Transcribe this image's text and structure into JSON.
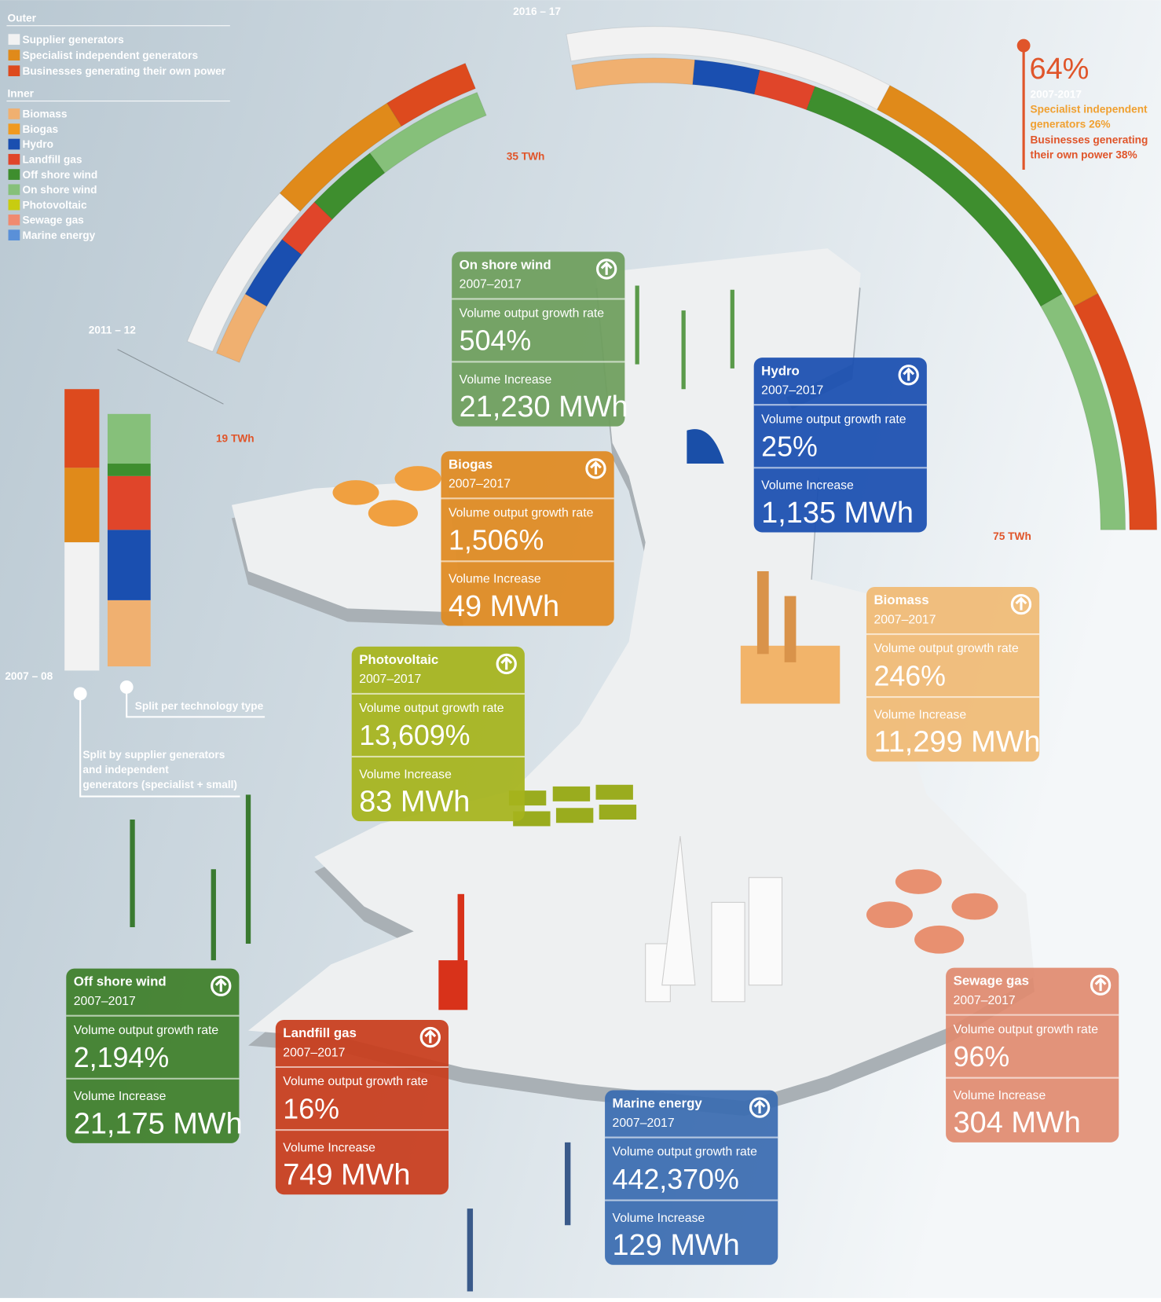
{
  "legend": {
    "outer_title": "Outer",
    "outer_items": [
      "Supplier generators",
      "Specialist independent generators",
      "Businesses generating their own power"
    ],
    "inner_title": "Inner",
    "inner_items": [
      "Biomass",
      "Biogas",
      "Hydro",
      "Landfill gas",
      "Off shore wind",
      "On shore wind",
      "Photovoltaic",
      "Sewage gas",
      "Marine energy"
    ]
  },
  "arc_labels": {
    "year_2016": "2016 – 17",
    "year_2011": "2011 – 12",
    "year_2007": "2007 – 08",
    "twh_35": "35 TWh",
    "twh_19": "19 TWh",
    "twh_75": "75 TWh"
  },
  "callout": {
    "percent": "64%",
    "period": "2007-2017",
    "specialist": [
      "Specialist independent",
      "generators 26%"
    ],
    "businesses": [
      "Businesses generating",
      "their own power 38%"
    ]
  },
  "annotations": {
    "split_technology": "Split per technology type",
    "split_supplier": [
      "Split by supplier generators",
      "and independent",
      "generators (specialist + small)"
    ]
  },
  "cards": [
    {
      "title": "On shore wind",
      "period": "2007–2017",
      "growth_label": "Volume output growth rate",
      "growth": "504%",
      "increase_label": "Volume Increase",
      "increase": "21,230 MWh"
    },
    {
      "title": "Hydro",
      "period": "2007–2017",
      "growth_label": "Volume output growth rate",
      "growth": "25%",
      "increase_label": "Volume Increase",
      "increase": "1,135 MWh"
    },
    {
      "title": "Biogas",
      "period": "2007–2017",
      "growth_label": "Volume output growth rate",
      "growth": "1,506%",
      "increase_label": "Volume Increase",
      "increase": "49 MWh"
    },
    {
      "title": "Biomass",
      "period": "2007–2017",
      "growth_label": "Volume output growth rate",
      "growth": "246%",
      "increase_label": "Volume Increase",
      "increase": "11,299 MWh"
    },
    {
      "title": "Photovoltaic",
      "period": "2007–2017",
      "growth_label": "Volume output growth rate",
      "growth": "13,609%",
      "increase_label": "Volume Increase",
      "increase": "83 MWh"
    },
    {
      "title": "Off shore wind",
      "period": "2007–2017",
      "growth_label": "Volume output growth rate",
      "growth": "2,194%",
      "increase_label": "Volume Increase",
      "increase": "21,175 MWh"
    },
    {
      "title": "Landfill gas",
      "period": "2007–2017",
      "growth_label": "Volume output growth rate",
      "growth": "16%",
      "increase_label": "Volume Increase",
      "increase": "749 MWh"
    },
    {
      "title": "Marine energy",
      "period": "2007–2017",
      "growth_label": "Volume output growth rate",
      "growth": "442,370%",
      "increase_label": "Volume Increase",
      "increase": "129 MWh"
    },
    {
      "title": "Sewage gas",
      "period": "2007–2017",
      "growth_label": "Volume output growth rate",
      "growth": "96%",
      "increase_label": "Volume Increase",
      "increase": "304 MWh"
    }
  ]
}
